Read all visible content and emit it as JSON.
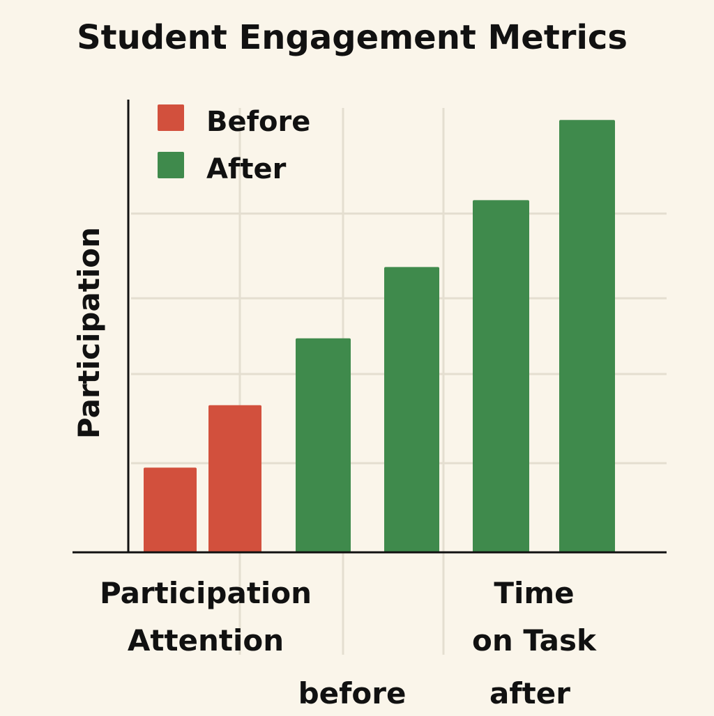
{
  "chart_data": {
    "type": "bar",
    "title": "Student Engagement Metrics",
    "ylabel": "Participation",
    "ylim": [
      0,
      100
    ],
    "grid": true,
    "legend_position": "top-left",
    "legend": [
      {
        "label": "Before",
        "color": "#d2503d"
      },
      {
        "label": "After",
        "color": "#3f8a4c"
      }
    ],
    "bars": [
      {
        "series": "Before",
        "value": 19
      },
      {
        "series": "Before",
        "value": 33
      },
      {
        "series": "After",
        "value": 48
      },
      {
        "series": "After",
        "value": 64
      },
      {
        "series": "After",
        "value": 79
      },
      {
        "series": "After",
        "value": 97
      }
    ],
    "category_labels": [
      {
        "lines": [
          "Participation",
          "Attention"
        ]
      },
      {
        "lines": [
          "before"
        ]
      },
      {
        "lines": [
          "Time",
          "on Task"
        ]
      },
      {
        "lines": [
          "after"
        ]
      }
    ]
  }
}
